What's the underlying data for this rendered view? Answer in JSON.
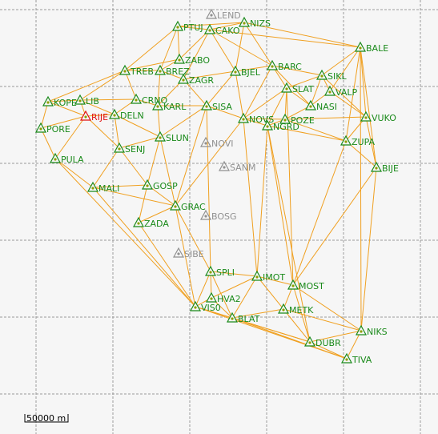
{
  "map": {
    "scale_label": "50000 m",
    "colors": {
      "background": "#f6f6f6",
      "grid": "#9a9a9a",
      "link": "#f0a020",
      "station_active": "#1a8a1a",
      "station_inactive": "#909090",
      "station_reference": "#e01010"
    },
    "stations": [
      {
        "name": "LEND",
        "status": "inactive"
      },
      {
        "name": "NIZS",
        "status": "active"
      },
      {
        "name": "PTUJ",
        "status": "active"
      },
      {
        "name": "CAKO",
        "status": "active"
      },
      {
        "name": "BALE",
        "status": "active"
      },
      {
        "name": "ZABO",
        "status": "active"
      },
      {
        "name": "TREB",
        "status": "active"
      },
      {
        "name": "BREZ",
        "status": "active"
      },
      {
        "name": "BARC",
        "status": "active"
      },
      {
        "name": "BJEL",
        "status": "active"
      },
      {
        "name": "ZAGR",
        "status": "active"
      },
      {
        "name": "SIKL",
        "status": "active"
      },
      {
        "name": "SLAT",
        "status": "active"
      },
      {
        "name": "VALP",
        "status": "active"
      },
      {
        "name": "KOPE",
        "status": "active"
      },
      {
        "name": "LIB",
        "status": "active"
      },
      {
        "name": "CRNO",
        "status": "active"
      },
      {
        "name": "KARL",
        "status": "active"
      },
      {
        "name": "SISA",
        "status": "active"
      },
      {
        "name": "NASI",
        "status": "active"
      },
      {
        "name": "RIJE",
        "status": "reference"
      },
      {
        "name": "DELN",
        "status": "active"
      },
      {
        "name": "NOVS",
        "status": "active"
      },
      {
        "name": "POZE",
        "status": "active"
      },
      {
        "name": "VUKO",
        "status": "active"
      },
      {
        "name": "PORE",
        "status": "active"
      },
      {
        "name": "NGRD",
        "status": "active"
      },
      {
        "name": "SLUN",
        "status": "active"
      },
      {
        "name": "NOVI",
        "status": "inactive"
      },
      {
        "name": "ZUPA",
        "status": "active"
      },
      {
        "name": "SENJ",
        "status": "active"
      },
      {
        "name": "PULA",
        "status": "active"
      },
      {
        "name": "SANM",
        "status": "inactive"
      },
      {
        "name": "BIJE",
        "status": "active"
      },
      {
        "name": "MALI",
        "status": "active"
      },
      {
        "name": "GOSP",
        "status": "active"
      },
      {
        "name": "GRAC",
        "status": "active"
      },
      {
        "name": "BOSG",
        "status": "inactive"
      },
      {
        "name": "ZADA",
        "status": "active"
      },
      {
        "name": "SIBE",
        "status": "inactive"
      },
      {
        "name": "SPLI",
        "status": "active"
      },
      {
        "name": "IMOT",
        "status": "active"
      },
      {
        "name": "MOST",
        "status": "active"
      },
      {
        "name": "HVA2",
        "status": "active"
      },
      {
        "name": "VIS0",
        "status": "active"
      },
      {
        "name": "METK",
        "status": "active"
      },
      {
        "name": "BLAT",
        "status": "active"
      },
      {
        "name": "NIKS",
        "status": "active"
      },
      {
        "name": "DUBR",
        "status": "active"
      },
      {
        "name": "TIVA",
        "status": "active"
      }
    ],
    "links": [
      [
        "PTUJ",
        "CAKO"
      ],
      [
        "CAKO",
        "NIZS"
      ],
      [
        "NIZS",
        "BALE"
      ],
      [
        "CAKO",
        "BALE"
      ],
      [
        "PTUJ",
        "NIZS"
      ],
      [
        "PTUJ",
        "TREB"
      ],
      [
        "PTUJ",
        "BREZ"
      ],
      [
        "PTUJ",
        "ZABO"
      ],
      [
        "CAKO",
        "ZABO"
      ],
      [
        "CAKO",
        "BJEL"
      ],
      [
        "CAKO",
        "ZAGR"
      ],
      [
        "CAKO",
        "BARC"
      ],
      [
        "NIZS",
        "BJEL"
      ],
      [
        "NIZS",
        "BARC"
      ],
      [
        "BALE",
        "SIKL"
      ],
      [
        "BALE",
        "VALP"
      ],
      [
        "BALE",
        "VUKO"
      ],
      [
        "BALE",
        "ZUPA"
      ],
      [
        "BALE",
        "BIJE"
      ],
      [
        "BARC",
        "SIKL"
      ],
      [
        "BARC",
        "SLAT"
      ],
      [
        "BARC",
        "NASI"
      ],
      [
        "BARC",
        "BJEL"
      ],
      [
        "BARC",
        "NOVS"
      ],
      [
        "SIKL",
        "VALP"
      ],
      [
        "SIKL",
        "SLAT"
      ],
      [
        "SIKL",
        "NASI"
      ],
      [
        "SIKL",
        "VUKO"
      ],
      [
        "VALP",
        "NASI"
      ],
      [
        "VALP",
        "VUKO"
      ],
      [
        "SLAT",
        "NASI"
      ],
      [
        "SLAT",
        "POZE"
      ],
      [
        "SLAT",
        "NGRD"
      ],
      [
        "NASI",
        "POZE"
      ],
      [
        "POZE",
        "NGRD"
      ],
      [
        "POZE",
        "VUKO"
      ],
      [
        "POZE",
        "ZUPA"
      ],
      [
        "VUKO",
        "ZUPA"
      ],
      [
        "VUKO",
        "BIJE"
      ],
      [
        "ZUPA",
        "BIJE"
      ],
      [
        "ZUPA",
        "NGRD"
      ],
      [
        "NOVS",
        "NGRD"
      ],
      [
        "NOVS",
        "POZE"
      ],
      [
        "NOVS",
        "BJEL"
      ],
      [
        "NOVS",
        "SISA"
      ],
      [
        "NOVS",
        "SLAT"
      ],
      [
        "BJEL",
        "SISA"
      ],
      [
        "BJEL",
        "ZAGR"
      ],
      [
        "ZAGR",
        "SISA"
      ],
      [
        "ZAGR",
        "BREZ"
      ],
      [
        "ZAGR",
        "KARL"
      ],
      [
        "ZABO",
        "BREZ"
      ],
      [
        "ZABO",
        "TREB"
      ],
      [
        "TREB",
        "BREZ"
      ],
      [
        "TREB",
        "CRNO"
      ],
      [
        "TREB",
        "KOPE"
      ],
      [
        "TREB",
        "LIB"
      ],
      [
        "BREZ",
        "KARL"
      ],
      [
        "CRNO",
        "KARL"
      ],
      [
        "CRNO",
        "DELN"
      ],
      [
        "CRNO",
        "LIB"
      ],
      [
        "KARL",
        "SISA"
      ],
      [
        "KARL",
        "SLUN"
      ],
      [
        "SISA",
        "SLUN"
      ],
      [
        "SISA",
        "GRAC"
      ],
      [
        "KOPE",
        "LIB"
      ],
      [
        "KOPE",
        "RIJE"
      ],
      [
        "KOPE",
        "PORE"
      ],
      [
        "LIB",
        "RIJE"
      ],
      [
        "LIB",
        "DELN"
      ],
      [
        "RIJE",
        "DELN"
      ],
      [
        "RIJE",
        "SENJ"
      ],
      [
        "RIJE",
        "PORE"
      ],
      [
        "RIJE",
        "PULA"
      ],
      [
        "DELN",
        "SENJ"
      ],
      [
        "DELN",
        "SLUN"
      ],
      [
        "PORE",
        "PULA"
      ],
      [
        "PULA",
        "MALI"
      ],
      [
        "PULA",
        "VIS0"
      ],
      [
        "SENJ",
        "SLUN"
      ],
      [
        "SENJ",
        "MALI"
      ],
      [
        "SENJ",
        "GOSP"
      ],
      [
        "SLUN",
        "GOSP"
      ],
      [
        "SLUN",
        "GRAC"
      ],
      [
        "MALI",
        "GOSP"
      ],
      [
        "MALI",
        "GRAC"
      ],
      [
        "MALI",
        "VIS0"
      ],
      [
        "GOSP",
        "GRAC"
      ],
      [
        "GOSP",
        "ZADA"
      ],
      [
        "GRAC",
        "ZADA"
      ],
      [
        "GRAC",
        "SPLI"
      ],
      [
        "GRAC",
        "VIS0"
      ],
      [
        "GRAC",
        "NOVS"
      ],
      [
        "ZADA",
        "VIS0"
      ],
      [
        "SPLI",
        "VIS0"
      ],
      [
        "SPLI",
        "HVA2"
      ],
      [
        "SPLI",
        "IMOT"
      ],
      [
        "SPLI",
        "BLAT"
      ],
      [
        "HVA2",
        "VIS0"
      ],
      [
        "HVA2",
        "BLAT"
      ],
      [
        "HVA2",
        "IMOT"
      ],
      [
        "VIS0",
        "BLAT"
      ],
      [
        "VIS0",
        "DUBR"
      ],
      [
        "VIS0",
        "TIVA"
      ],
      [
        "IMOT",
        "MOST"
      ],
      [
        "IMOT",
        "METK"
      ],
      [
        "IMOT",
        "BLAT"
      ],
      [
        "IMOT",
        "NOVS"
      ],
      [
        "IMOT",
        "NGRD"
      ],
      [
        "MOST",
        "METK"
      ],
      [
        "MOST",
        "NIKS"
      ],
      [
        "MOST",
        "DUBR"
      ],
      [
        "MOST",
        "BIJE"
      ],
      [
        "MOST",
        "SLAT"
      ],
      [
        "MOST",
        "NGRD"
      ],
      [
        "METK",
        "BLAT"
      ],
      [
        "METK",
        "DUBR"
      ],
      [
        "METK",
        "NIKS"
      ],
      [
        "BLAT",
        "DUBR"
      ],
      [
        "NIKS",
        "DUBR"
      ],
      [
        "NIKS",
        "TIVA"
      ],
      [
        "NIKS",
        "BIJE"
      ],
      [
        "NIKS",
        "BALE"
      ],
      [
        "DUBR",
        "TIVA"
      ],
      [
        "TIVA",
        "BLAT"
      ],
      [
        "SPLI",
        "SISA"
      ],
      [
        "ZUPA",
        "MOST"
      ],
      [
        "NGRD",
        "DUBR"
      ]
    ]
  }
}
